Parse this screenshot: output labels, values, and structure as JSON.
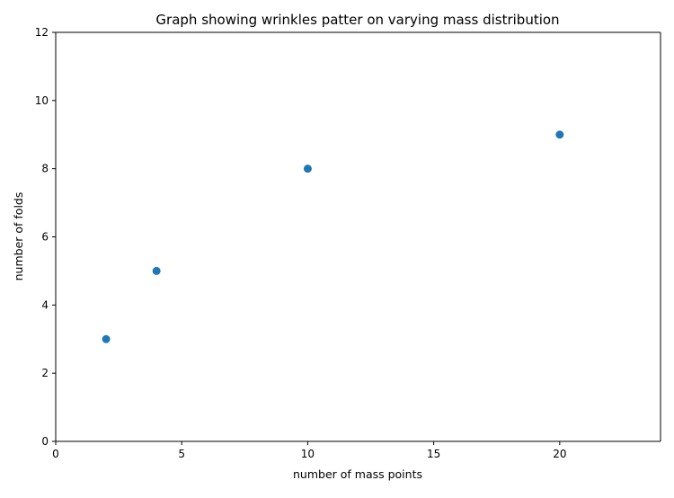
{
  "chart_data": {
    "type": "scatter",
    "title": "Graph showing wrinkles patter on varying mass distribution",
    "xlabel": "number of mass points",
    "ylabel": "number of folds",
    "xlim": [
      0,
      24
    ],
    "ylim": [
      0,
      12
    ],
    "x_ticks": [
      0,
      5,
      10,
      15,
      20
    ],
    "y_ticks": [
      0,
      2,
      4,
      6,
      8,
      10,
      12
    ],
    "grid": false,
    "series": [
      {
        "color": "#1f77b4",
        "points": [
          {
            "x": 2,
            "y": 3
          },
          {
            "x": 4,
            "y": 5
          },
          {
            "x": 10,
            "y": 8
          },
          {
            "x": 20,
            "y": 9
          }
        ]
      }
    ]
  }
}
